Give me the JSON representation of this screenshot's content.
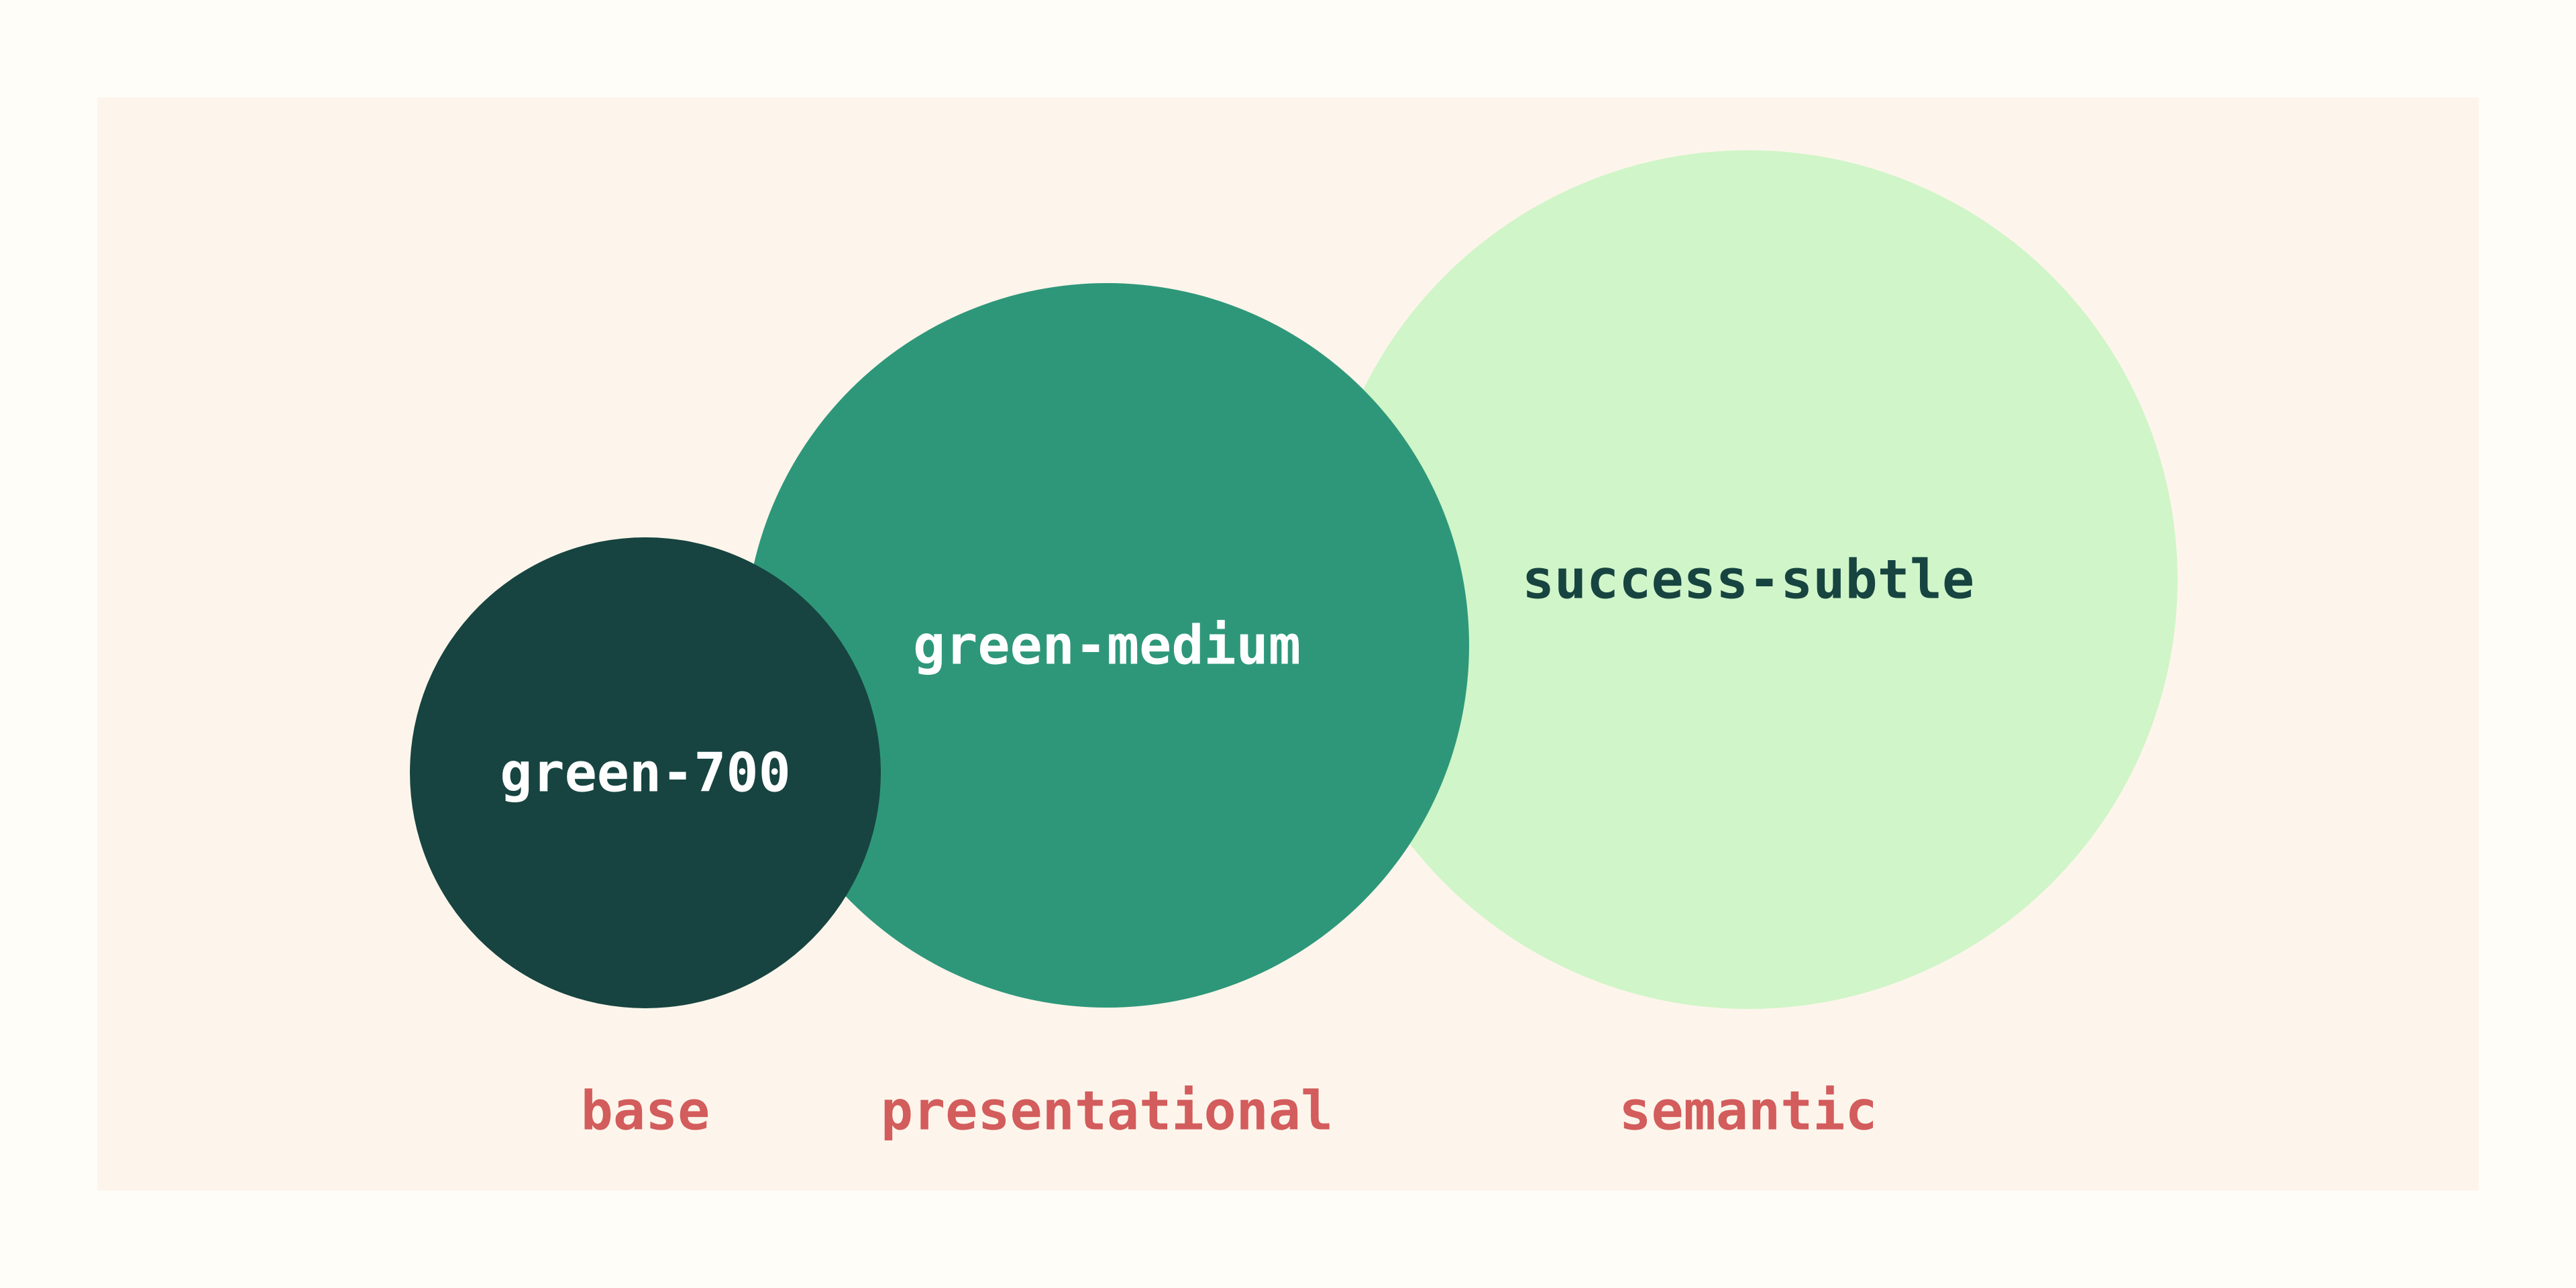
{
  "tokens": {
    "base": {
      "name": "green-700",
      "color": "#174440",
      "text_color": "#ffffff"
    },
    "presentational": {
      "name": "green-medium",
      "color": "#2e977a",
      "text_color": "#ffffff"
    },
    "semantic": {
      "name": "success-subtle",
      "color": "#d0f5c8",
      "text_color": "#174440"
    }
  },
  "labels": {
    "base": "base",
    "presentational": "presentational",
    "semantic": "semantic",
    "color": "#d35c5c"
  },
  "background": {
    "page": "#fffdf8",
    "panel": "#fdf5eb"
  }
}
